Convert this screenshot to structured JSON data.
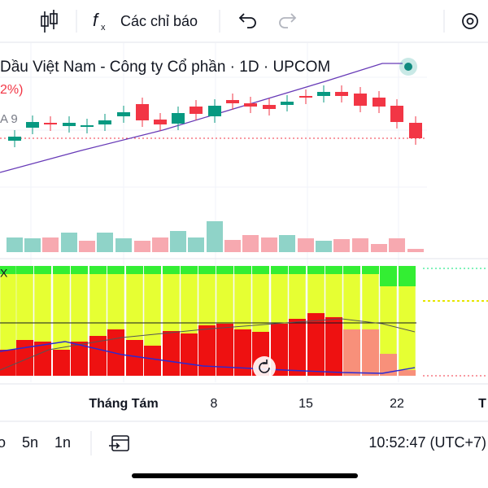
{
  "toolbar": {
    "indicators": "Các chỉ báo"
  },
  "chart": {
    "title": "Dầu Việt Nam - Công ty Cổ phần · 1D · UPCOM",
    "change": "2%)",
    "ma_label": "A 9",
    "indicator_label": "X"
  },
  "time_axis": [
    "Tháng Tám",
    "8",
    "15",
    "22",
    "T"
  ],
  "bottom_bar": {
    "ranges": [
      "o",
      "5n",
      "1n"
    ],
    "clock": "10:52:47 (UTC+7)"
  }
}
